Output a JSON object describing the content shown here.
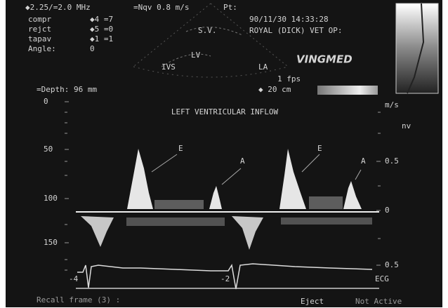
{
  "header": {
    "frequency": "◆2.25/=2.0 MHz",
    "nyquist": "=Nqv 0.8 m/s",
    "patient": "Pt:",
    "date_time": "90/11/30  14:33:28",
    "site": "ROYAL (DICK) VET OP:",
    "settings": [
      [
        "compr",
        "◆4 =7"
      ],
      [
        "rejct",
        "◆5 =0"
      ],
      [
        "tapav",
        "◆1 =1"
      ],
      [
        "Angle:",
        "0"
      ]
    ]
  },
  "image": {
    "labels": [
      "S.V.",
      "LV",
      "IVS",
      "LA"
    ],
    "frame_rate": "1 fps",
    "scale": "◆ 20 cm",
    "logo": "VINGMED",
    "depth": "=Depth:  96 mm"
  },
  "doppler": {
    "title": "LEFT VENTRICULAR INFLOW",
    "depth_ticks": [
      "0",
      "50",
      "100",
      "150"
    ],
    "velocity_unit": "m/s",
    "nv": "nv",
    "velocity_ticks": [
      "0.5",
      "0",
      "0.5"
    ],
    "waves": [
      "E",
      "A",
      "E",
      "A"
    ],
    "ecg_markers": [
      "-4",
      "-2"
    ],
    "ecg_label": "ECG"
  },
  "footer": {
    "recall": "Recall frame (3) :",
    "eject": "Eject",
    "status": "Not Active"
  }
}
